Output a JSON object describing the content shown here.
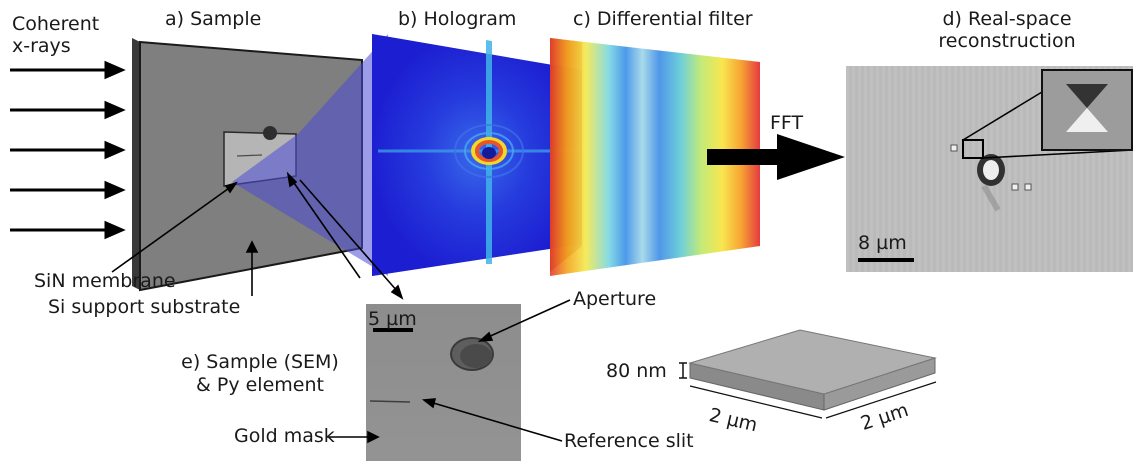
{
  "labels": {
    "coherent_line1": "Coherent",
    "coherent_line2": "x-rays",
    "panel_a": "a) Sample",
    "panel_b": "b) Hologram",
    "panel_c": "c) Differential filter",
    "panel_d_line1": "d) Real-space",
    "panel_d_line2": "reconstruction",
    "fft": "FFT",
    "sin_membrane": "SiN membrane",
    "si_support": "Si support substrate",
    "panel_e_line1": "e) Sample (SEM)",
    "panel_e_line2": "& Py element",
    "gold_mask": "Gold mask",
    "aperture": "Aperture",
    "reference_slit": "Reference slit",
    "scale_recon": "8 µm",
    "scale_sem": "5 µm",
    "thickness": "80 nm",
    "width_dim": "2 µm",
    "depth_dim": "2 µm"
  },
  "colors": {
    "sample_gray": "#7f7f7f",
    "hologram_blue": "#1f1fd6",
    "membrane_blue": "#5a5ad8",
    "recon_gray": "#bcbcbc",
    "sem_gray": "#8e8e8e"
  }
}
